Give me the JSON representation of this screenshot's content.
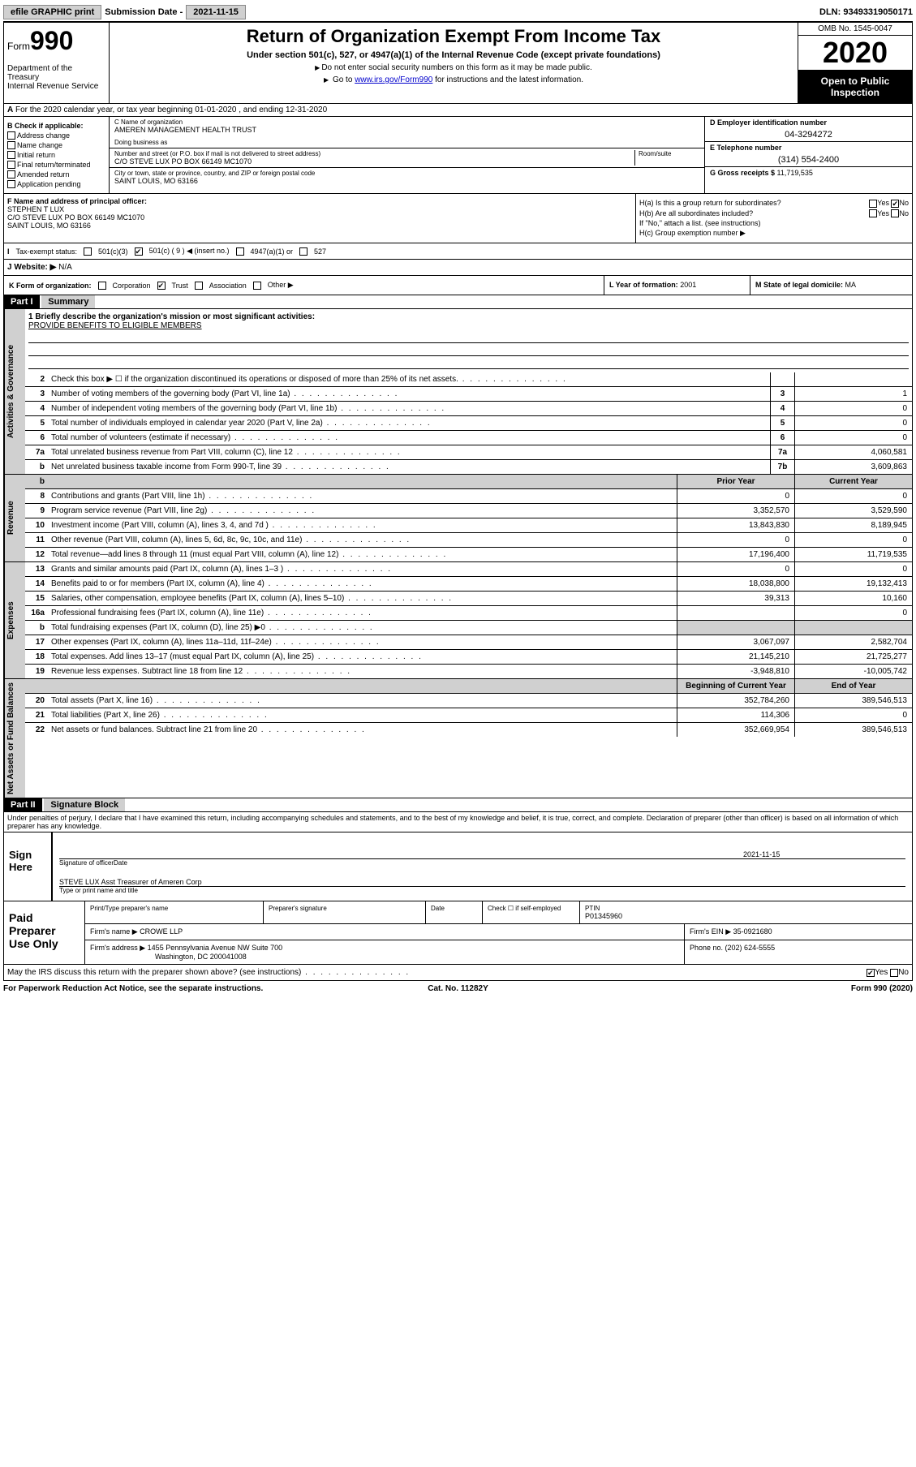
{
  "topbar": {
    "efile": "efile GRAPHIC print",
    "subdate_label": "Submission Date - ",
    "subdate": "2021-11-15",
    "dln_label": "DLN: ",
    "dln": "93493319050171"
  },
  "header": {
    "form_prefix": "Form",
    "form_num": "990",
    "dept": "Department of the Treasury\nInternal Revenue Service",
    "title": "Return of Organization Exempt From Income Tax",
    "subtitle": "Under section 501(c), 527, or 4947(a)(1) of the Internal Revenue Code (except private foundations)",
    "note1": "Do not enter social security numbers on this form as it may be made public.",
    "note2_pre": "Go to ",
    "note2_link": "www.irs.gov/Form990",
    "note2_post": " for instructions and the latest information.",
    "omb": "OMB No. 1545-0047",
    "year": "2020",
    "inspect": "Open to Public Inspection"
  },
  "rowA": "For the 2020 calendar year, or tax year beginning 01-01-2020   , and ending 12-31-2020",
  "boxB": {
    "hdr": "B Check if applicable:",
    "addr": "Address change",
    "name": "Name change",
    "init": "Initial return",
    "final": "Final return/terminated",
    "amend": "Amended return",
    "app": "Application pending"
  },
  "boxC": {
    "lbl_name": "C Name of organization",
    "org_name": "AMEREN MANAGEMENT HEALTH TRUST",
    "dba_lbl": "Doing business as",
    "lbl_addr": "Number and street (or P.O. box if mail is not delivered to street address)",
    "room_lbl": "Room/suite",
    "addr": "C/O STEVE LUX PO BOX 66149 MC1070",
    "lbl_city": "City or town, state or province, country, and ZIP or foreign postal code",
    "city": "SAINT LOUIS, MO  63166"
  },
  "boxD": {
    "lbl": "D Employer identification number",
    "val": "04-3294272"
  },
  "boxE": {
    "lbl": "E Telephone number",
    "val": "(314) 554-2400"
  },
  "boxG": {
    "lbl": "G Gross receipts $ ",
    "val": "11,719,535"
  },
  "boxF": {
    "lbl": "F Name and address of principal officer:",
    "name": "STEPHEN T LUX",
    "addr1": "C/O STEVE LUX PO BOX 66149 MC1070",
    "addr2": "SAINT LOUIS, MO  63166"
  },
  "boxH": {
    "a": "H(a)  Is this a group return for subordinates?",
    "b": "H(b)  Are all subordinates included?",
    "b_note": "If \"No,\" attach a list. (see instructions)",
    "c": "H(c)  Group exemption number ▶",
    "yes": "Yes",
    "no": "No"
  },
  "boxI": {
    "lbl": "Tax-exempt status:",
    "c3": "501(c)(3)",
    "c": "501(c) ( 9 ) ◀ (insert no.)",
    "a1": "4947(a)(1) or",
    "s527": "527"
  },
  "boxJ": {
    "lbl": "J   Website: ▶",
    "val": "N/A"
  },
  "boxK": {
    "lbl": "K Form of organization:",
    "corp": "Corporation",
    "trust": "Trust",
    "assoc": "Association",
    "other": "Other ▶"
  },
  "boxL": {
    "lbl": "L Year of formation: ",
    "val": "2001"
  },
  "boxM": {
    "lbl": "M State of legal domicile: ",
    "val": "MA"
  },
  "part1": {
    "hdr": "Part I",
    "title": "Summary"
  },
  "mission": {
    "q": "1  Briefly describe the organization's mission or most significant activities:",
    "a": "PROVIDE BENEFITS TO ELIGIBLE MEMBERS"
  },
  "lines_gov": [
    {
      "n": "2",
      "d": "Check this box ▶ ☐  if the organization discontinued its operations or disposed of more than 25% of its net assets.",
      "box": "",
      "v": ""
    },
    {
      "n": "3",
      "d": "Number of voting members of the governing body (Part VI, line 1a)",
      "box": "3",
      "v": "1"
    },
    {
      "n": "4",
      "d": "Number of independent voting members of the governing body (Part VI, line 1b)",
      "box": "4",
      "v": "0"
    },
    {
      "n": "5",
      "d": "Total number of individuals employed in calendar year 2020 (Part V, line 2a)",
      "box": "5",
      "v": "0"
    },
    {
      "n": "6",
      "d": "Total number of volunteers (estimate if necessary)",
      "box": "6",
      "v": "0"
    },
    {
      "n": "7a",
      "d": "Total unrelated business revenue from Part VIII, column (C), line 12",
      "box": "7a",
      "v": "4,060,581"
    },
    {
      "n": "b",
      "d": "Net unrelated business taxable income from Form 990-T, line 39",
      "box": "7b",
      "v": "3,609,863"
    }
  ],
  "col_hdrs": {
    "prior": "Prior Year",
    "current": "Current Year"
  },
  "lines_rev": [
    {
      "n": "8",
      "d": "Contributions and grants (Part VIII, line 1h)",
      "p": "0",
      "c": "0"
    },
    {
      "n": "9",
      "d": "Program service revenue (Part VIII, line 2g)",
      "p": "3,352,570",
      "c": "3,529,590"
    },
    {
      "n": "10",
      "d": "Investment income (Part VIII, column (A), lines 3, 4, and 7d )",
      "p": "13,843,830",
      "c": "8,189,945"
    },
    {
      "n": "11",
      "d": "Other revenue (Part VIII, column (A), lines 5, 6d, 8c, 9c, 10c, and 11e)",
      "p": "0",
      "c": "0"
    },
    {
      "n": "12",
      "d": "Total revenue—add lines 8 through 11 (must equal Part VIII, column (A), line 12)",
      "p": "17,196,400",
      "c": "11,719,535"
    }
  ],
  "lines_exp": [
    {
      "n": "13",
      "d": "Grants and similar amounts paid (Part IX, column (A), lines 1–3 )",
      "p": "0",
      "c": "0"
    },
    {
      "n": "14",
      "d": "Benefits paid to or for members (Part IX, column (A), line 4)",
      "p": "18,038,800",
      "c": "19,132,413"
    },
    {
      "n": "15",
      "d": "Salaries, other compensation, employee benefits (Part IX, column (A), lines 5–10)",
      "p": "39,313",
      "c": "10,160"
    },
    {
      "n": "16a",
      "d": "Professional fundraising fees (Part IX, column (A), line 11e)",
      "p": "",
      "c": "0"
    },
    {
      "n": "b",
      "d": "Total fundraising expenses (Part IX, column (D), line 25) ▶0",
      "p": "",
      "c": "",
      "shade": true
    },
    {
      "n": "17",
      "d": "Other expenses (Part IX, column (A), lines 11a–11d, 11f–24e)",
      "p": "3,067,097",
      "c": "2,582,704"
    },
    {
      "n": "18",
      "d": "Total expenses. Add lines 13–17 (must equal Part IX, column (A), line 25)",
      "p": "21,145,210",
      "c": "21,725,277"
    },
    {
      "n": "19",
      "d": "Revenue less expenses. Subtract line 18 from line 12",
      "p": "-3,948,810",
      "c": "-10,005,742"
    }
  ],
  "col_hdrs2": {
    "begin": "Beginning of Current Year",
    "end": "End of Year"
  },
  "lines_net": [
    {
      "n": "20",
      "d": "Total assets (Part X, line 16)",
      "p": "352,784,260",
      "c": "389,546,513"
    },
    {
      "n": "21",
      "d": "Total liabilities (Part X, line 26)",
      "p": "114,306",
      "c": "0"
    },
    {
      "n": "22",
      "d": "Net assets or fund balances. Subtract line 21 from line 20",
      "p": "352,669,954",
      "c": "389,546,513"
    }
  ],
  "sidelabels": {
    "gov": "Activities & Governance",
    "rev": "Revenue",
    "exp": "Expenses",
    "net": "Net Assets or Fund Balances"
  },
  "part2": {
    "hdr": "Part II",
    "title": "Signature Block"
  },
  "perjury": "Under penalties of perjury, I declare that I have examined this return, including accompanying schedules and statements, and to the best of my knowledge and belief, it is true, correct, and complete. Declaration of preparer (other than officer) is based on all information of which preparer has any knowledge.",
  "sign": {
    "here": "Sign Here",
    "sig_lbl": "Signature of officer",
    "date_lbl": "Date",
    "date": "2021-11-15",
    "name": "STEVE LUX  Asst Treasurer of Ameren Corp",
    "name_lbl": "Type or print name and title"
  },
  "prep": {
    "here": "Paid Preparer Use Only",
    "ptname_lbl": "Print/Type preparer's name",
    "psig_lbl": "Preparer's signature",
    "pdate_lbl": "Date",
    "chk_lbl": "Check ☐ if self-employed",
    "ptin_lbl": "PTIN",
    "ptin": "P01345960",
    "firm_lbl": "Firm's name  ▶",
    "firm": "CROWE LLP",
    "ein_lbl": "Firm's EIN ▶ ",
    "ein": "35-0921680",
    "addr_lbl": "Firm's address ▶",
    "addr1": "1455 Pennsylvania Avenue NW Suite 700",
    "addr2": "Washington, DC  200041008",
    "phone_lbl": "Phone no. ",
    "phone": "(202) 624-5555"
  },
  "discuss": {
    "q": "May the IRS discuss this return with the preparer shown above? (see instructions)",
    "yes": "Yes",
    "no": "No"
  },
  "footer": {
    "l": "For Paperwork Reduction Act Notice, see the separate instructions.",
    "m": "Cat. No. 11282Y",
    "r": "Form 990 (2020)"
  }
}
